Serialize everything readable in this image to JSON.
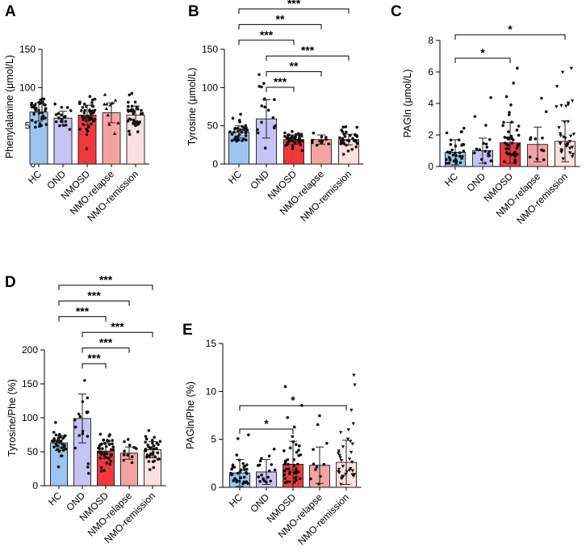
{
  "figure": {
    "categories": [
      "HC",
      "OND",
      "NMOSD",
      "NMO-relapse",
      "NMO-remission"
    ],
    "colors": {
      "HC": "#9cc4f0",
      "OND": "#c7c3f5",
      "NMOSD": "#f0383b",
      "NMO-relapse": "#f4a3a3",
      "NMO-remission": "#fbe0e0",
      "edge": "#1a1a1a",
      "points": "#111111"
    }
  },
  "chart_data": [
    {
      "panel": "A",
      "type": "bar",
      "ylabel": "Phenylalanine (μmol/L)",
      "ylim": [
        0,
        150
      ],
      "yticks": [
        0,
        50,
        100,
        150
      ],
      "categories": [
        "HC",
        "OND",
        "NMOSD",
        "NMO-relapse",
        "NMO-remission"
      ],
      "values": [
        68,
        60,
        64,
        67,
        64
      ],
      "sd": [
        12,
        9,
        13,
        13,
        12
      ],
      "n": [
        36,
        18,
        46,
        11,
        35
      ],
      "significance": []
    },
    {
      "panel": "B",
      "type": "bar",
      "ylabel": "Tyrosine (μmol/L)",
      "ylim": [
        0,
        150
      ],
      "yticks": [
        0,
        50,
        100,
        150
      ],
      "categories": [
        "HC",
        "OND",
        "NMOSD",
        "NMO-relapse",
        "NMO-remission"
      ],
      "values": [
        42,
        59,
        32,
        32,
        32
      ],
      "sd": [
        8,
        25,
        6,
        6,
        7
      ],
      "n": [
        36,
        18,
        46,
        11,
        35
      ],
      "significance": [
        {
          "from": "HC",
          "to": "NMO-remission",
          "label": "***"
        },
        {
          "from": "HC",
          "to": "NMO-relapse",
          "label": "**"
        },
        {
          "from": "HC",
          "to": "NMOSD",
          "label": "***"
        },
        {
          "from": "OND",
          "to": "NMO-remission",
          "label": "***"
        },
        {
          "from": "OND",
          "to": "NMO-relapse",
          "label": "**"
        },
        {
          "from": "OND",
          "to": "NMOSD",
          "label": "***"
        }
      ]
    },
    {
      "panel": "C",
      "type": "bar",
      "ylabel": "PAGln (μmol/L)",
      "ylim": [
        0,
        8
      ],
      "yticks": [
        0,
        2,
        4,
        6,
        8
      ],
      "categories": [
        "HC",
        "OND",
        "NMOSD",
        "NMO-relapse",
        "NMO-remission"
      ],
      "values": [
        0.9,
        1.0,
        1.5,
        1.4,
        1.6
      ],
      "sd": [
        0.8,
        0.8,
        1.3,
        1.1,
        1.3
      ],
      "n": [
        36,
        18,
        46,
        11,
        35
      ],
      "significance": [
        {
          "from": "HC",
          "to": "NMO-remission",
          "label": "*"
        },
        {
          "from": "HC",
          "to": "NMOSD",
          "label": "*"
        }
      ]
    },
    {
      "panel": "D",
      "type": "bar",
      "ylabel": "Tyrosine/Phe (%)",
      "ylim": [
        0,
        200
      ],
      "yticks": [
        0,
        50,
        100,
        150,
        200
      ],
      "categories": [
        "HC",
        "OND",
        "NMOSD",
        "NMO-relapse",
        "NMO-remission"
      ],
      "values": [
        63,
        99,
        51,
        48,
        53
      ],
      "sd": [
        11,
        36,
        11,
        9,
        12
      ],
      "n": [
        36,
        18,
        46,
        11,
        35
      ],
      "significance": [
        {
          "from": "HC",
          "to": "NMO-remission",
          "label": "***"
        },
        {
          "from": "HC",
          "to": "NMO-relapse",
          "label": "***"
        },
        {
          "from": "HC",
          "to": "NMOSD",
          "label": "***"
        },
        {
          "from": "OND",
          "to": "NMO-remission",
          "label": "***"
        },
        {
          "from": "OND",
          "to": "NMO-relapse",
          "label": "***"
        },
        {
          "from": "OND",
          "to": "NMOSD",
          "label": "***"
        }
      ]
    },
    {
      "panel": "E",
      "type": "bar",
      "ylabel": "PAGln/Phe (%)",
      "ylim": [
        0,
        15
      ],
      "yticks": [
        0,
        5,
        10,
        15
      ],
      "categories": [
        "HC",
        "OND",
        "NMOSD",
        "NMO-relapse",
        "NMO-remission"
      ],
      "values": [
        1.5,
        1.6,
        2.4,
        2.3,
        2.6
      ],
      "sd": [
        1.4,
        1.3,
        2.4,
        1.9,
        2.3
      ],
      "n": [
        36,
        18,
        46,
        11,
        35
      ],
      "significance": [
        {
          "from": "HC",
          "to": "NMO-remission",
          "label": "*"
        },
        {
          "from": "HC",
          "to": "NMOSD",
          "label": "*"
        }
      ]
    }
  ]
}
